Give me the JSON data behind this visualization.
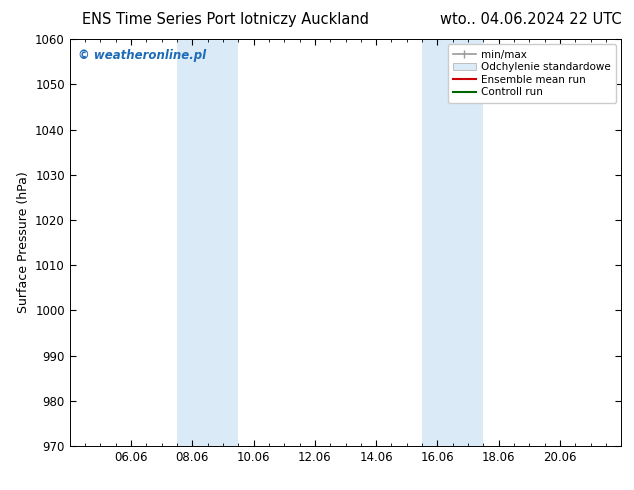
{
  "title": "ENS Time Series Port lotniczy Auckland       wto.. 04.06.2024 22 UTC",
  "title_left": "ENS Time Series Port lotniczy Auckland",
  "title_right": "wto.. 04.06.2024 22 UTC",
  "ylabel": "Surface Pressure (hPa)",
  "ylim": [
    970,
    1060
  ],
  "yticks": [
    970,
    980,
    990,
    1000,
    1010,
    1020,
    1030,
    1040,
    1050,
    1060
  ],
  "xtick_labels": [
    "06.06",
    "08.06",
    "10.06",
    "12.06",
    "14.06",
    "16.06",
    "18.06",
    "20.06"
  ],
  "xtick_positions": [
    2,
    4,
    6,
    8,
    10,
    12,
    14,
    16
  ],
  "xlim": [
    0,
    18
  ],
  "shaded_bands": [
    {
      "x_start": 3.5,
      "x_end": 5.5,
      "color": "#daeaf7"
    },
    {
      "x_start": 11.5,
      "x_end": 13.5,
      "color": "#daeaf7"
    }
  ],
  "watermark_text": "© weatheronline.pl",
  "watermark_color": "#1e6bb8",
  "background_color": "#ffffff",
  "plot_bg_color": "#ffffff",
  "title_fontsize": 10.5,
  "axis_fontsize": 9,
  "tick_fontsize": 8.5
}
